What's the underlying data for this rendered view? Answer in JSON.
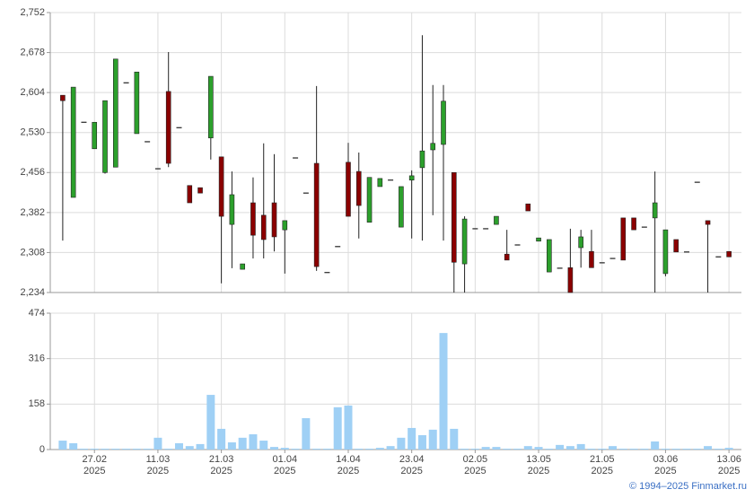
{
  "chart_data": [
    {
      "type": "candlestick",
      "up_color": "#2ca02c",
      "down_color": "#8b0000",
      "edge_color": "#222222",
      "open": [
        2599,
        2410,
        2549,
        2500,
        2456,
        2466,
        2622,
        2528,
        2513,
        2463,
        2606,
        2539,
        2432,
        2428,
        2520,
        2485,
        2360,
        2277,
        2400,
        2377,
        2400,
        2350,
        2483,
        2418,
        2473,
        2271,
        2319,
        2475,
        2458,
        2364,
        2430,
        2442,
        2355,
        2442,
        2465,
        2498,
        2508,
        2456,
        2287,
        2352,
        2352,
        2360,
        2305,
        2322,
        2398,
        2329,
        2272,
        2279,
        2280,
        2317,
        2310,
        2289,
        2297,
        2372,
        2372,
        2355,
        2372,
        2269,
        2332,
        2309,
        2438,
        2367,
        2300,
        2310
      ],
      "high": [
        2599,
        2614,
        2549,
        2549,
        2589,
        2666,
        2622,
        2642,
        2513,
        2463,
        2679,
        2539,
        2432,
        2428,
        2634,
        2485,
        2458,
        2287,
        2447,
        2510,
        2490,
        2367,
        2483,
        2418,
        2616,
        2271,
        2319,
        2511,
        2493,
        2447,
        2445,
        2442,
        2430,
        2460,
        2710,
        2618,
        2618,
        2456,
        2375,
        2352,
        2352,
        2375,
        2350,
        2322,
        2398,
        2335,
        2332,
        2279,
        2352,
        2350,
        2350,
        2289,
        2297,
        2372,
        2372,
        2355,
        2458,
        2350,
        2332,
        2309,
        2438,
        2367,
        2300,
        2310
      ],
      "low": [
        2330,
        2410,
        2549,
        2500,
        2454,
        2466,
        2622,
        2528,
        2513,
        2463,
        2466,
        2539,
        2400,
        2418,
        2480,
        2251,
        2279,
        2277,
        2297,
        2297,
        2310,
        2269,
        2483,
        2418,
        2274,
        2271,
        2319,
        2375,
        2334,
        2364,
        2430,
        2442,
        2355,
        2334,
        2330,
        2377,
        2330,
        2234,
        2234,
        2352,
        2352,
        2360,
        2294,
        2322,
        2385,
        2329,
        2272,
        2279,
        2234,
        2280,
        2280,
        2289,
        2297,
        2294,
        2350,
        2355,
        2234,
        2264,
        2309,
        2309,
        2438,
        2234,
        2300,
        2300
      ],
      "close": [
        2589,
        2614,
        2549,
        2549,
        2589,
        2666,
        2622,
        2642,
        2513,
        2463,
        2473,
        2539,
        2400,
        2418,
        2634,
        2375,
        2415,
        2287,
        2340,
        2332,
        2337,
        2367,
        2483,
        2418,
        2282,
        2271,
        2319,
        2375,
        2395,
        2447,
        2445,
        2442,
        2430,
        2450,
        2496,
        2510,
        2588,
        2290,
        2370,
        2352,
        2352,
        2375,
        2294,
        2322,
        2385,
        2335,
        2332,
        2279,
        2234,
        2337,
        2280,
        2289,
        2297,
        2294,
        2350,
        2355,
        2400,
        2350,
        2309,
        2309,
        2438,
        2360,
        2300,
        2300
      ],
      "ylim": [
        2234,
        2752
      ],
      "yticks": [
        {
          "value": 2234,
          "label": "2,234"
        },
        {
          "value": 2308,
          "label": "2,308"
        },
        {
          "value": 2382,
          "label": "2,382"
        },
        {
          "value": 2456,
          "label": "2,456"
        },
        {
          "value": 2530,
          "label": "2,530"
        },
        {
          "value": 2604,
          "label": "2,604"
        },
        {
          "value": 2678,
          "label": "2,678"
        },
        {
          "value": 2752,
          "label": "2,752"
        }
      ],
      "grid": true
    },
    {
      "type": "bar",
      "color": "#9fd0f5",
      "categories": [
        null,
        null,
        null,
        "27.02",
        null,
        null,
        null,
        null,
        null,
        "11.03",
        null,
        null,
        null,
        null,
        null,
        "21.03",
        null,
        null,
        null,
        null,
        null,
        "01.04",
        null,
        null,
        null,
        null,
        null,
        "14.04",
        null,
        null,
        null,
        null,
        null,
        "23.04",
        null,
        null,
        null,
        null,
        null,
        "02.05",
        null,
        null,
        null,
        null,
        null,
        "13.05",
        null,
        null,
        null,
        null,
        null,
        "21.05",
        null,
        null,
        null,
        null,
        null,
        "03.06",
        null,
        null,
        null,
        null,
        null,
        "13.06"
      ],
      "category_years": [
        null,
        null,
        null,
        "2025",
        null,
        null,
        null,
        null,
        null,
        "2025",
        null,
        null,
        null,
        null,
        null,
        "2025",
        null,
        null,
        null,
        null,
        null,
        "2025",
        null,
        null,
        null,
        null,
        null,
        "2025",
        null,
        null,
        null,
        null,
        null,
        "2025",
        null,
        null,
        null,
        null,
        null,
        "2025",
        null,
        null,
        null,
        null,
        null,
        "2025",
        null,
        null,
        null,
        null,
        null,
        "2025",
        null,
        null,
        null,
        null,
        null,
        "2025",
        null,
        null,
        null,
        null,
        null,
        "2025"
      ],
      "values": [
        31,
        22,
        3,
        3,
        3,
        3,
        3,
        3,
        3,
        41,
        3,
        22,
        12,
        19,
        190,
        72,
        25,
        41,
        53,
        31,
        9,
        6,
        3,
        109,
        3,
        3,
        147,
        153,
        3,
        3,
        6,
        12,
        41,
        75,
        50,
        69,
        405,
        72,
        3,
        3,
        9,
        9,
        3,
        3,
        12,
        9,
        3,
        16,
        12,
        19,
        3,
        3,
        12,
        3,
        3,
        3,
        28,
        3,
        3,
        3,
        3,
        12,
        3,
        6
      ],
      "ylim": [
        0,
        474
      ],
      "yticks": [
        0,
        158,
        316,
        474
      ],
      "grid": true
    }
  ],
  "footer": "© 1994–2025 Finmarket.ru"
}
